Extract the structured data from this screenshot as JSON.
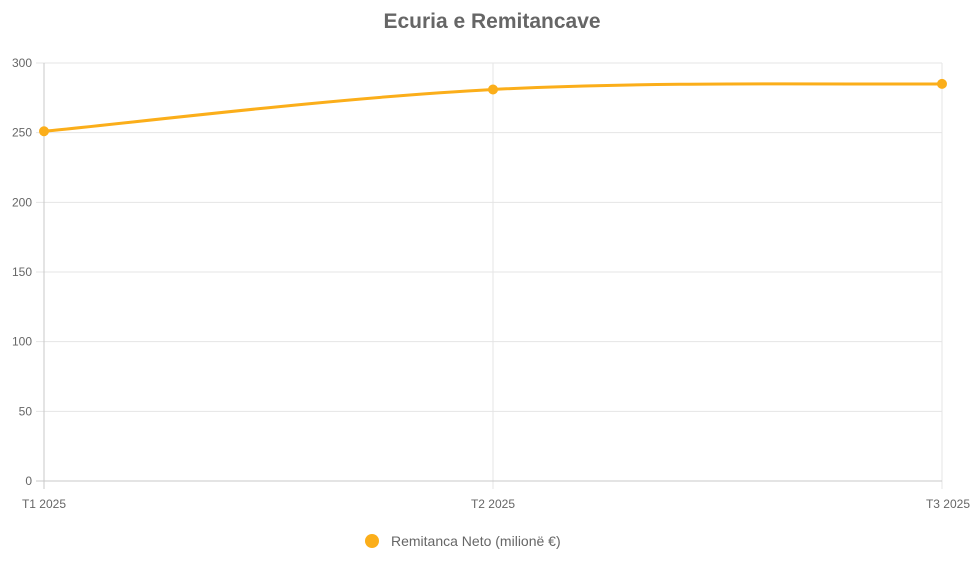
{
  "chart_data": {
    "type": "line",
    "title": "Ecuria e Remitancave",
    "categories": [
      "T1 2025",
      "T2 2025",
      "T3 2025"
    ],
    "series": [
      {
        "name": "Remitanca Neto (milionë €)",
        "values": [
          251,
          281,
          285
        ],
        "color": "#FBAE1A"
      }
    ],
    "ylim": [
      0,
      300
    ],
    "yticks": [
      0,
      50,
      100,
      150,
      200,
      250,
      300
    ],
    "grid": true,
    "legend_position": "bottom"
  }
}
